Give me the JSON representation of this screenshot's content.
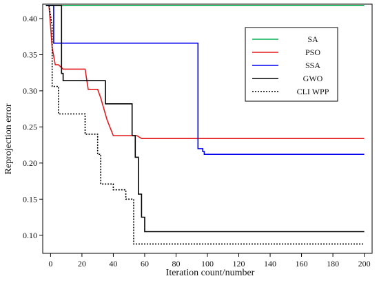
{
  "chart_data": {
    "type": "line",
    "title": "",
    "xlabel": "Iteration count/number",
    "ylabel": "Reprojection error",
    "xlim": [
      -5,
      205
    ],
    "ylim": [
      0.075,
      0.42
    ],
    "xticks": [
      0,
      20,
      40,
      60,
      80,
      100,
      120,
      140,
      160,
      180,
      200
    ],
    "yticks": [
      0.1,
      0.15,
      0.2,
      0.25,
      0.3,
      0.35,
      0.4
    ],
    "grid": false,
    "legend_position": "top-right",
    "series": [
      {
        "name": "SA",
        "color": "#00b050",
        "style": "solid",
        "x": [
          -3,
          200
        ],
        "y": [
          0.418,
          0.418
        ]
      },
      {
        "name": "PSO",
        "color": "#e41a1c",
        "style": "solid",
        "x": [
          -1,
          1,
          3,
          5,
          8,
          10,
          22,
          24,
          30,
          32,
          36,
          40,
          42,
          55,
          58,
          60,
          62,
          200
        ],
        "y": [
          0.418,
          0.36,
          0.336,
          0.336,
          0.33,
          0.33,
          0.33,
          0.302,
          0.302,
          0.29,
          0.26,
          0.238,
          0.238,
          0.238,
          0.234,
          0.234,
          0.234,
          0.234
        ]
      },
      {
        "name": "SSA",
        "color": "#0000ee",
        "style": "solid",
        "x": [
          -3,
          2,
          2,
          94,
          94,
          97,
          97,
          98,
          98,
          200
        ],
        "y": [
          0.418,
          0.418,
          0.366,
          0.366,
          0.22,
          0.22,
          0.216,
          0.216,
          0.212,
          0.212
        ]
      },
      {
        "name": "GWO",
        "color": "#000000",
        "style": "solid",
        "x": [
          -3,
          7,
          7,
          8,
          8,
          35,
          35,
          52,
          52,
          54,
          54,
          56,
          56,
          58,
          58,
          60,
          60,
          200
        ],
        "y": [
          0.418,
          0.418,
          0.324,
          0.324,
          0.314,
          0.314,
          0.282,
          0.282,
          0.238,
          0.238,
          0.208,
          0.208,
          0.157,
          0.157,
          0.125,
          0.125,
          0.105,
          0.105
        ]
      },
      {
        "name": "CLI WPP",
        "color": "#000000",
        "style": "dotted",
        "x": [
          -1,
          1,
          1,
          5,
          5,
          8,
          8,
          22,
          22,
          24,
          24,
          30,
          30,
          32,
          32,
          40,
          40,
          48,
          48,
          53,
          53,
          200
        ],
        "y": [
          0.418,
          0.39,
          0.306,
          0.306,
          0.268,
          0.268,
          0.268,
          0.268,
          0.24,
          0.24,
          0.24,
          0.24,
          0.212,
          0.212,
          0.171,
          0.171,
          0.163,
          0.163,
          0.15,
          0.15,
          0.088,
          0.088
        ]
      }
    ]
  }
}
